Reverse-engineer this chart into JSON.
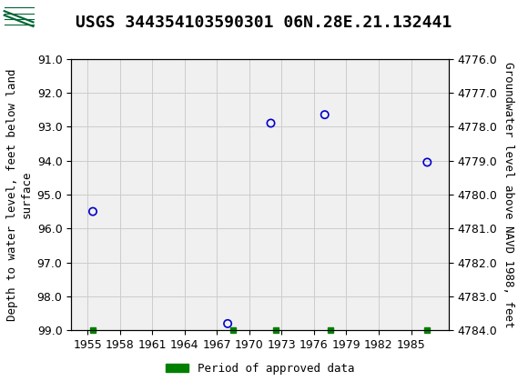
{
  "title": "USGS 344354103590301 06N.28E.21.132441",
  "ylabel_left": "Depth to water level, feet below land\nsurface",
  "ylabel_right": "Groundwater level above NAVD 1988, feet",
  "xlim": [
    1953.5,
    1988.5
  ],
  "ylim_left": [
    91.0,
    99.0
  ],
  "ylim_right": [
    4784.0,
    4776.0
  ],
  "xticks": [
    1955,
    1958,
    1961,
    1964,
    1967,
    1970,
    1973,
    1976,
    1979,
    1982,
    1985
  ],
  "yticks_left": [
    91.0,
    92.0,
    93.0,
    94.0,
    95.0,
    96.0,
    97.0,
    98.0,
    99.0
  ],
  "yticks_right": [
    4784.0,
    4783.0,
    4782.0,
    4781.0,
    4780.0,
    4779.0,
    4778.0,
    4777.0,
    4776.0
  ],
  "data_points_x": [
    1955.5,
    1968.0,
    1972.0,
    1977.0,
    1986.5
  ],
  "data_points_y": [
    95.5,
    98.8,
    92.9,
    92.65,
    94.05
  ],
  "green_squares_x": [
    1955.5,
    1968.5,
    1972.5,
    1977.5,
    1986.5
  ],
  "marker_color": "#0000cc",
  "marker_facecolor": "none",
  "marker_size": 6,
  "green_color": "#008000",
  "plot_bg_color": "#f0f0f0",
  "header_color": "#006633",
  "grid_color": "#cccccc",
  "title_fontsize": 13,
  "axis_label_fontsize": 9,
  "tick_fontsize": 9,
  "legend_label": "Period of approved data",
  "font_family": "monospace"
}
